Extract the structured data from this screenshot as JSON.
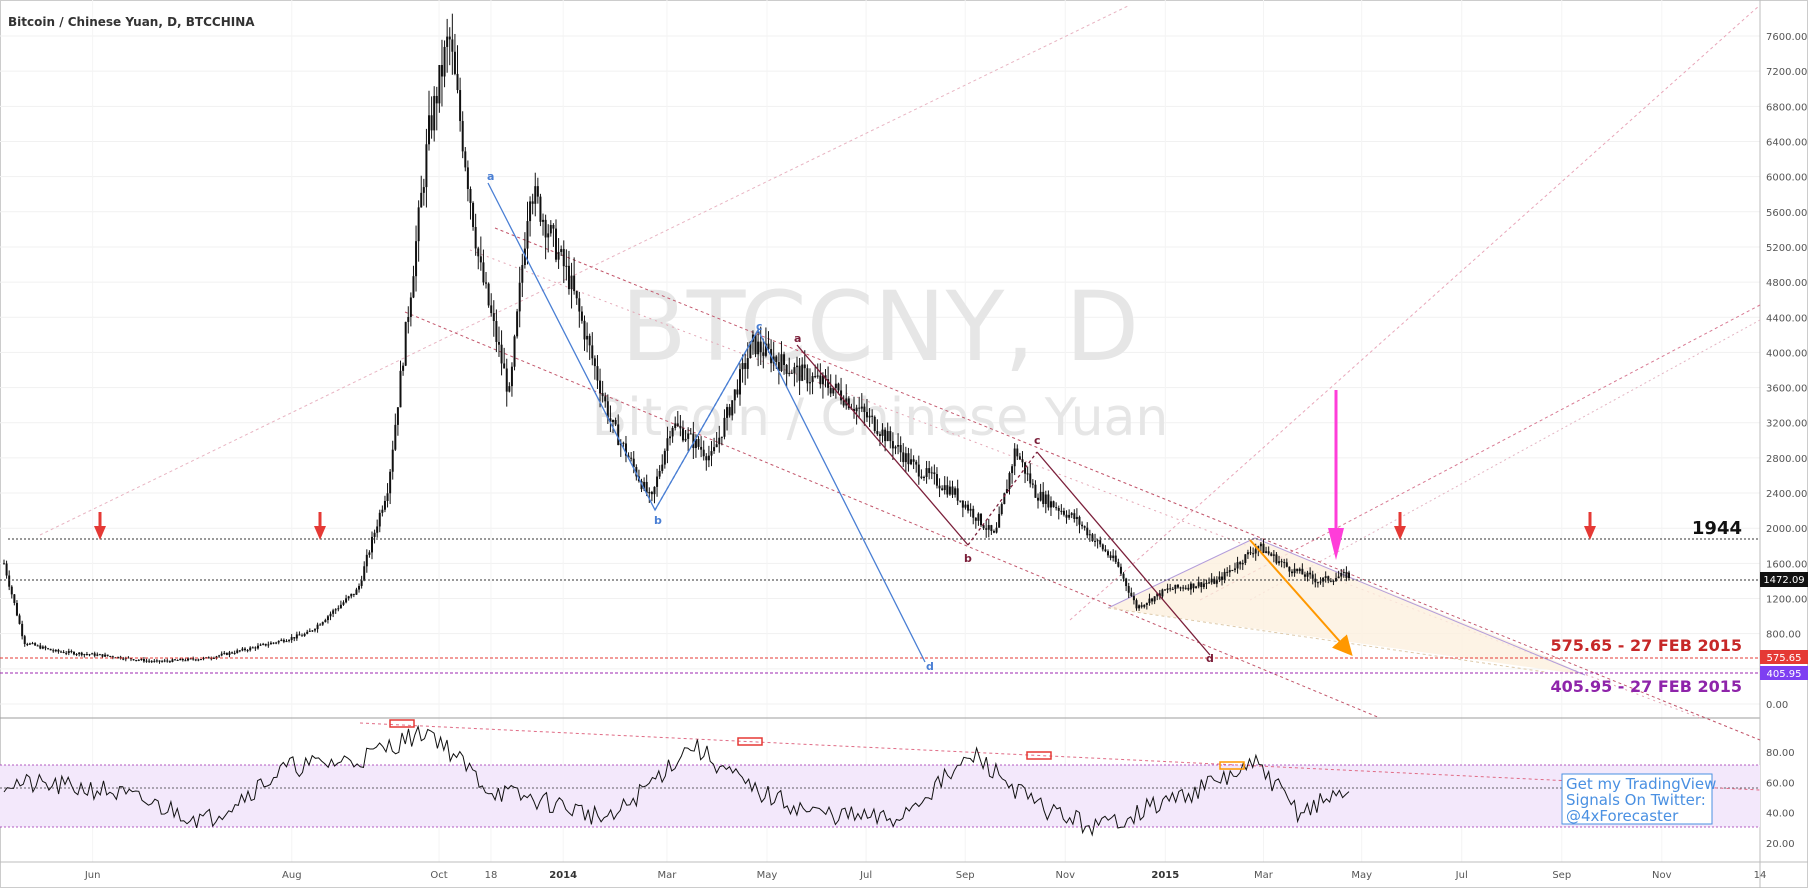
{
  "header": {
    "symbol_title": "Bitcoin / Chinese Yuan, D, BTCCHINA"
  },
  "watermark": {
    "ticker": "BTCCNY, D",
    "name": "Bitcoin / Chinese Yuan"
  },
  "price_axis": {
    "ticks": [
      "7600.00",
      "7200.00",
      "6800.00",
      "6400.00",
      "6000.00",
      "5600.00",
      "5200.00",
      "4800.00",
      "4400.00",
      "4000.00",
      "3600.00",
      "3200.00",
      "2800.00",
      "2400.00",
      "2000.00",
      "1600.00",
      "1200.00",
      "800.00",
      "400.00",
      "0.00"
    ],
    "last_price": "1472.09",
    "level_red_tag": "575.65",
    "level_purple_tag": "405.95"
  },
  "rsi_axis": {
    "ticks": [
      "80.00",
      "60.00",
      "40.00",
      "20.00"
    ]
  },
  "time_axis": {
    "labels": [
      {
        "text": "Jun",
        "bold": false
      },
      {
        "text": "Aug",
        "bold": false
      },
      {
        "text": "Oct",
        "bold": false
      },
      {
        "text": "18",
        "bold": false
      },
      {
        "text": "2014",
        "bold": true
      },
      {
        "text": "Mar",
        "bold": false
      },
      {
        "text": "May",
        "bold": false
      },
      {
        "text": "Jul",
        "bold": false
      },
      {
        "text": "Sep",
        "bold": false
      },
      {
        "text": "Nov",
        "bold": false
      },
      {
        "text": "2015",
        "bold": true
      },
      {
        "text": "Mar",
        "bold": false
      },
      {
        "text": "May",
        "bold": false
      },
      {
        "text": "Jul",
        "bold": false
      },
      {
        "text": "Sep",
        "bold": false
      },
      {
        "text": "Nov",
        "bold": false
      },
      {
        "text": "14",
        "bold": false
      }
    ]
  },
  "annotations": {
    "level_1944": "1944",
    "level_575": "575.65 - 27 FEB 2015",
    "level_405": "405.95 - 27 FEB 2015",
    "wave_labels_blue": [
      "a",
      "b",
      "c",
      "d"
    ],
    "wave_labels_dark": [
      "a",
      "b",
      "c",
      "d"
    ],
    "twitter_box": [
      "Get my TradingView",
      "Signals On Twitter:",
      "@4xForecaster"
    ]
  },
  "colors": {
    "candle": "#111111",
    "red_level": "#e53935",
    "purple_level": "#9c27b0",
    "red_text": "#c62828",
    "purple_text": "#8e24aa",
    "blue_wave": "#4a7fd4",
    "dark_wave": "#7b1f3a",
    "orange_arrow": "#ff9800",
    "magenta_arrow": "#ff3dd9",
    "rsi_band": "#f3e8fb",
    "twitter_text": "#4a90e2"
  },
  "chart_data": {
    "type": "candlestick",
    "title": "Bitcoin / Chinese Yuan, D, BTCCHINA",
    "y_range": [
      0,
      7800
    ],
    "rsi_range": [
      10,
      100
    ],
    "horizontal_levels": [
      1944,
      1472.09,
      575.65,
      405.95
    ],
    "price_path": [
      [
        0,
        1600
      ],
      [
        0.02,
        700
      ],
      [
        0.05,
        600
      ],
      [
        0.1,
        550
      ],
      [
        0.15,
        480
      ],
      [
        0.2,
        520
      ],
      [
        0.25,
        650
      ],
      [
        0.3,
        800
      ],
      [
        0.35,
        1300
      ],
      [
        0.38,
        2500
      ],
      [
        0.42,
        6500
      ],
      [
        0.44,
        7600
      ],
      [
        0.47,
        5000
      ],
      [
        0.5,
        3500
      ],
      [
        0.52,
        5900
      ],
      [
        0.56,
        4800
      ],
      [
        0.6,
        3200
      ],
      [
        0.64,
        2300
      ],
      [
        0.66,
        3200
      ],
      [
        0.7,
        2800
      ],
      [
        0.74,
        4100
      ],
      [
        0.78,
        3800
      ],
      [
        0.82,
        3600
      ],
      [
        0.86,
        3200
      ],
      [
        0.9,
        2700
      ],
      [
        0.94,
        2400
      ],
      [
        0.98,
        1900
      ],
      [
        1.0,
        2900
      ],
      [
        1.02,
        2400
      ],
      [
        1.06,
        2100
      ],
      [
        1.1,
        1600
      ],
      [
        1.12,
        1100
      ],
      [
        1.15,
        1300
      ],
      [
        1.2,
        1400
      ],
      [
        1.24,
        1800
      ],
      [
        1.27,
        1550
      ],
      [
        1.3,
        1400
      ],
      [
        1.33,
        1472
      ]
    ],
    "rsi_path": [
      [
        0,
        60
      ],
      [
        0.1,
        55
      ],
      [
        0.2,
        35
      ],
      [
        0.28,
        70
      ],
      [
        0.35,
        75
      ],
      [
        0.42,
        95
      ],
      [
        0.48,
        55
      ],
      [
        0.55,
        45
      ],
      [
        0.6,
        35
      ],
      [
        0.68,
        85
      ],
      [
        0.74,
        55
      ],
      [
        0.8,
        40
      ],
      [
        0.88,
        35
      ],
      [
        0.96,
        78
      ],
      [
        1.02,
        45
      ],
      [
        1.08,
        30
      ],
      [
        1.12,
        40
      ],
      [
        1.18,
        55
      ],
      [
        1.24,
        72
      ],
      [
        1.28,
        40
      ],
      [
        1.33,
        55
      ]
    ]
  }
}
